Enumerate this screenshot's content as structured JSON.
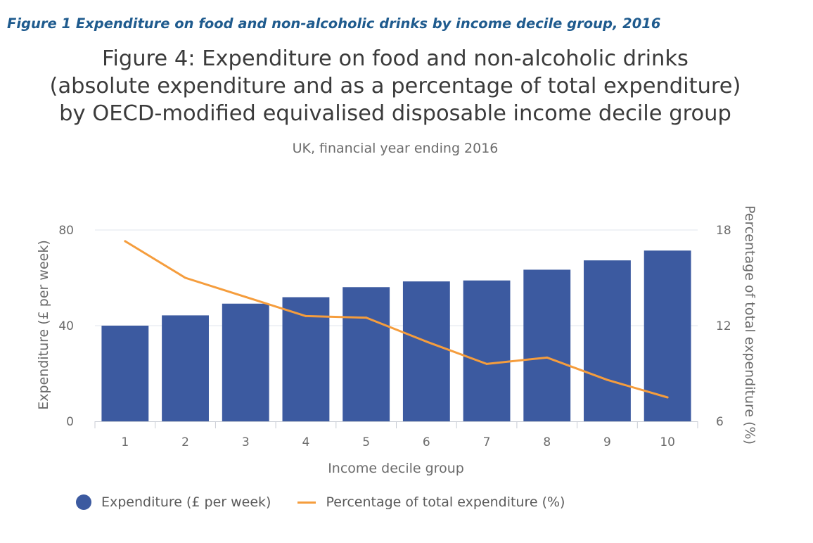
{
  "caption": "Figure 1 Expenditure on food and non-alcoholic drinks by income decile group, 2016",
  "title_lines": [
    "Figure 4: Expenditure on food and non-alcoholic drinks",
    "(absolute expenditure and as a percentage of total expenditure)",
    "by OECD-modified equivalised disposable income decile group"
  ],
  "subtitle": "UK, financial year ending 2016",
  "colors": {
    "bar": "#3c5aa0",
    "line": "#f59d3d",
    "grid": "#e2e6ee",
    "axis": "#c8ccd4"
  },
  "chart_data": {
    "type": "bar",
    "categories": [
      "1",
      "2",
      "3",
      "4",
      "5",
      "6",
      "7",
      "8",
      "9",
      "10"
    ],
    "series": [
      {
        "name": "Expenditure (£ per week)",
        "type": "bar",
        "axis": "left",
        "values": [
          40,
          44.3,
          49.2,
          51.9,
          56.1,
          58.5,
          58.9,
          63.4,
          67.3,
          71.4
        ]
      },
      {
        "name": "Percentage of total expenditure (%)",
        "type": "line",
        "axis": "right",
        "values": [
          17.3,
          15.0,
          13.8,
          12.6,
          12.5,
          11.0,
          9.6,
          10.0,
          8.6,
          7.5
        ]
      }
    ],
    "xlabel": "Income decile group",
    "ylabel": "Expenditure (£ per week)",
    "y2label": "Percentage of total expenditure (%)",
    "ylim": [
      0,
      80
    ],
    "yticks": [
      "0",
      "40",
      "80"
    ],
    "y2lim": [
      6,
      18
    ],
    "y2ticks": [
      "6",
      "12",
      "18"
    ],
    "grid": true,
    "legend": "bottom"
  }
}
